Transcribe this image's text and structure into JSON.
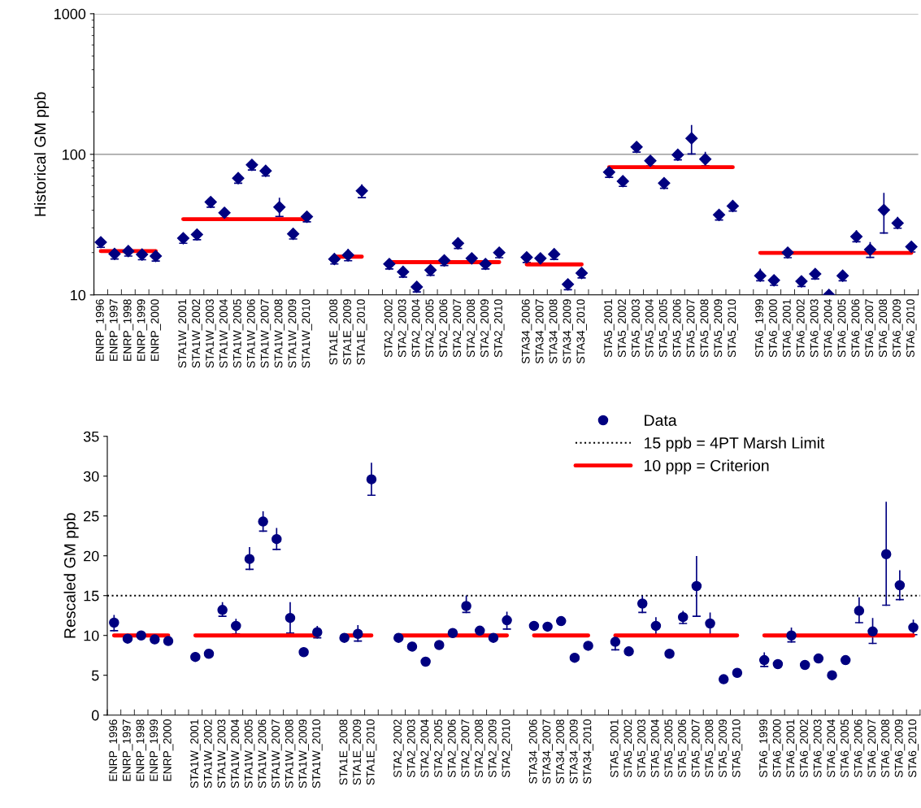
{
  "chart_data": [
    {
      "type": "scatter",
      "ylabel": "Historical GM ppb",
      "log": "y",
      "grid": "y",
      "ylim": [
        10,
        1000
      ],
      "yticks": [
        10,
        100,
        1000
      ],
      "categories": [
        "ENRP_1996",
        "ENRP_1997",
        "ENRP_1998",
        "ENRP_1999",
        "ENRP_2000",
        null,
        "STA1W_2001",
        "STA1W_2002",
        "STA1W_2003",
        "STA1W_2004",
        "STA1W_2005",
        "STA1W_2006",
        "STA1W_2007",
        "STA1W_2008",
        "STA1W_2009",
        "STA1W_2010",
        null,
        "STA1E_2008",
        "STA1E_2009",
        "STA1E_2010",
        null,
        "STA2_2002",
        "STA2_2003",
        "STA2_2004",
        "STA2_2005",
        "STA2_2006",
        "STA2_2007",
        "STA2_2008",
        "STA2_2009",
        "STA2_2010",
        null,
        "STA34_2006",
        "STA34_2007",
        "STA34_2008",
        "STA34_2009",
        "STA34_2010",
        null,
        "STA5_2001",
        "STA5_2002",
        "STA5_2003",
        "STA5_2004",
        "STA5_2005",
        "STA5_2006",
        "STA5_2007",
        "STA5_2008",
        "STA5_2009",
        "STA5_2010",
        null,
        "STA6_1999",
        "STA6_2000",
        "STA6_2001",
        "STA6_2002",
        "STA6_2003",
        "STA6_2004",
        "STA6_2005",
        "STA6_2006",
        "STA6_2007",
        "STA6_2008",
        "STA6_2009",
        "STA6_2010"
      ],
      "series": [
        {
          "marker": "diamond",
          "color": "#000080",
          "values": [
            23.7,
            19.6,
            20.5,
            19.4,
            18.9,
            null,
            25.3,
            26.9,
            45.8,
            38.4,
            67.7,
            84.1,
            76.3,
            42.1,
            27.2,
            36.0,
            null,
            18.0,
            19.2,
            55.0,
            null,
            16.6,
            14.6,
            11.4,
            15.0,
            17.6,
            23.3,
            18.2,
            16.6,
            20.0,
            null,
            18.5,
            18.2,
            19.5,
            11.9,
            14.3,
            null,
            74.7,
            64.4,
            112.7,
            89.9,
            62.4,
            99.3,
            130,
            92.4,
            37.1,
            42.9,
            null,
            13.7,
            12.7,
            20.0,
            12.5,
            14.1,
            10.0,
            13.7,
            26.0,
            21.0,
            40.2,
            32.4,
            22.0
          ],
          "errors": [
            [
              21.8,
              25.4
            ],
            [
              18.0,
              21.0
            ],
            [
              18.9,
              21.9
            ],
            [
              17.8,
              20.8
            ],
            [
              17.4,
              20.2
            ],
            null,
            [
              23.3,
              27.1
            ],
            [
              24.7,
              28.8
            ],
            [
              42.1,
              49.0
            ],
            [
              35.3,
              41.1
            ],
            [
              62.3,
              72.4
            ],
            [
              77.4,
              90.0
            ],
            [
              70.2,
              81.6
            ],
            [
              36.1,
              48.6
            ],
            [
              25.0,
              29.1
            ],
            [
              33.1,
              38.5
            ],
            null,
            [
              16.6,
              19.3
            ],
            [
              17.5,
              21.0
            ],
            [
              49.2,
              60.6
            ],
            null,
            [
              15.3,
              17.8
            ],
            [
              13.4,
              15.6
            ],
            [
              10.5,
              12.2
            ],
            [
              13.8,
              16.1
            ],
            [
              16.2,
              18.8
            ],
            [
              21.4,
              25.4
            ],
            [
              16.7,
              19.5
            ],
            [
              15.3,
              17.8
            ],
            [
              18.4,
              21.4
            ],
            null,
            [
              17.0,
              19.8
            ],
            [
              16.7,
              19.5
            ],
            [
              17.9,
              20.9
            ],
            [
              10.9,
              12.7
            ],
            [
              13.2,
              15.3
            ],
            null,
            [
              68.7,
              79.9
            ],
            [
              59.2,
              68.9
            ],
            [
              103.7,
              120.6
            ],
            [
              82.7,
              96.2
            ],
            [
              57.4,
              66.8
            ],
            [
              91.4,
              106.3
            ],
            [
              100.7,
              160
            ],
            [
              83.0,
              103
            ],
            [
              34.1,
              39.7
            ],
            [
              39.5,
              45.9
            ],
            null,
            [
              12.6,
              15.2
            ],
            [
              11.7,
              13.6
            ],
            [
              18.4,
              21.4
            ],
            [
              11.5,
              13.4
            ],
            [
              13.0,
              15.1
            ],
            null,
            [
              12.6,
              14.7
            ],
            [
              23.9,
              28.5
            ],
            [
              18.5,
              23.5
            ],
            [
              27.6,
              52.7
            ],
            [
              29.8,
              35.5
            ],
            [
              20.2,
              23.5
            ]
          ]
        },
        {
          "type": "line",
          "color": "#ff0000",
          "values": [
            20.5,
            20.5,
            20.5,
            20.5,
            20.5,
            null,
            34.6,
            34.6,
            34.6,
            34.6,
            34.6,
            34.6,
            34.6,
            34.6,
            34.6,
            34.6,
            null,
            18.7,
            18.7,
            18.7,
            null,
            17.1,
            17.1,
            17.1,
            17.1,
            17.1,
            17.1,
            17.1,
            17.1,
            17.1,
            null,
            16.5,
            16.5,
            16.5,
            16.5,
            16.5,
            null,
            81,
            81,
            81,
            81,
            81,
            81,
            81,
            81,
            81,
            81,
            null,
            19.9,
            19.9,
            19.9,
            19.9,
            19.9,
            19.9,
            19.9,
            19.9,
            19.9,
            19.9,
            19.9,
            19.9
          ]
        }
      ]
    },
    {
      "type": "scatter",
      "ylabel": "Rescaled GM ppb",
      "legend": "top right",
      "ylim": [
        0,
        35
      ],
      "yticks": [
        0,
        5,
        10,
        15,
        20,
        25,
        30,
        35
      ],
      "categories": [
        "ENRP_1996",
        "ENRP_1997",
        "ENRP_1998",
        "ENRP_1999",
        "ENRP_2000",
        null,
        "STA1W_2001",
        "STA1W_2002",
        "STA1W_2003",
        "STA1W_2004",
        "STA1W_2005",
        "STA1W_2006",
        "STA1W_2007",
        "STA1W_2008",
        "STA1W_2009",
        "STA1W_2010",
        null,
        "STA1E_2008",
        "STA1E_2009",
        "STA1E_2010",
        null,
        "STA2_2002",
        "STA2_2003",
        "STA2_2004",
        "STA2_2005",
        "STA2_2006",
        "STA2_2007",
        "STA2_2008",
        "STA2_2009",
        "STA2_2010",
        null,
        "STA34_2006",
        "STA34_2007",
        "STA34_2008",
        "STA34_2009",
        "STA34_2010",
        null,
        "STA5_2001",
        "STA5_2002",
        "STA5_2003",
        "STA5_2004",
        "STA5_2005",
        "STA5_2006",
        "STA5_2007",
        "STA5_2008",
        "STA5_2009",
        "STA5_2010",
        null,
        "STA6_1999",
        "STA6_2000",
        "STA6_2001",
        "STA6_2002",
        "STA6_2003",
        "STA6_2004",
        "STA6_2005",
        "STA6_2006",
        "STA6_2007",
        "STA6_2008",
        "STA6_2009",
        "STA6_2010"
      ],
      "series": [
        {
          "marker": "circle",
          "name": "Data",
          "color": "#000080",
          "values": [
            11.6,
            9.6,
            10.0,
            9.5,
            9.3,
            null,
            7.3,
            7.7,
            13.2,
            11.2,
            19.6,
            24.3,
            22.1,
            12.2,
            7.9,
            10.4,
            null,
            9.7,
            10.2,
            29.6,
            null,
            9.7,
            8.6,
            6.7,
            8.8,
            10.3,
            13.7,
            10.6,
            9.7,
            11.9,
            null,
            11.2,
            11.1,
            11.8,
            7.2,
            8.7,
            null,
            9.2,
            8.0,
            14.0,
            11.2,
            7.7,
            12.3,
            16.2,
            11.5,
            4.5,
            5.3,
            null,
            6.9,
            6.4,
            10.0,
            6.3,
            7.1,
            5.0,
            6.9,
            13.1,
            10.5,
            20.2,
            16.3,
            11.0
          ],
          "errors": [
            [
              10.6,
              12.5
            ],
            null,
            null,
            null,
            null,
            null,
            null,
            null,
            [
              12.4,
              14.1
            ],
            [
              10.2,
              12.0
            ],
            [
              18.3,
              21.0
            ],
            [
              23.1,
              25.5
            ],
            [
              20.8,
              23.4
            ],
            [
              10.3,
              14.1
            ],
            null,
            [
              9.7,
              11.1
            ],
            null,
            null,
            [
              9.3,
              11.2
            ],
            [
              27.6,
              31.6
            ],
            null,
            null,
            null,
            null,
            null,
            null,
            [
              12.9,
              14.9
            ],
            null,
            null,
            [
              10.8,
              12.9
            ],
            null,
            null,
            null,
            null,
            null,
            null,
            null,
            [
              8.2,
              10.1
            ],
            null,
            [
              12.9,
              14.9
            ],
            [
              10.1,
              12.2
            ],
            null,
            [
              11.5,
              13.0
            ],
            [
              12.4,
              19.9
            ],
            [
              10.1,
              12.8
            ],
            null,
            null,
            null,
            [
              6.1,
              7.8
            ],
            null,
            [
              9.2,
              10.9
            ],
            null,
            null,
            null,
            null,
            [
              11.6,
              14.7
            ],
            [
              9.0,
              12.1
            ],
            [
              13.8,
              26.7
            ],
            [
              14.5,
              18.1
            ],
            [
              10.1,
              11.9
            ]
          ]
        },
        {
          "type": "line",
          "name": "10 ppp = Criterion",
          "color": "#ff0000",
          "values": [
            10,
            10,
            10,
            10,
            10,
            null,
            10,
            10,
            10,
            10,
            10,
            10,
            10,
            10,
            10,
            10,
            null,
            10,
            10,
            10,
            null,
            10,
            10,
            10,
            10,
            10,
            10,
            10,
            10,
            10,
            null,
            10,
            10,
            10,
            10,
            10,
            null,
            10,
            10,
            10,
            10,
            10,
            10,
            10,
            10,
            10,
            10,
            null,
            10,
            10,
            10,
            10,
            10,
            10,
            10,
            10,
            10,
            10,
            10,
            10
          ]
        }
      ],
      "ref_lines": [
        {
          "axis": "y",
          "value": 15,
          "label": "15 ppb = 4PT Marsh Limit",
          "color": "#000000",
          "line_style": "dotted"
        }
      ]
    }
  ]
}
